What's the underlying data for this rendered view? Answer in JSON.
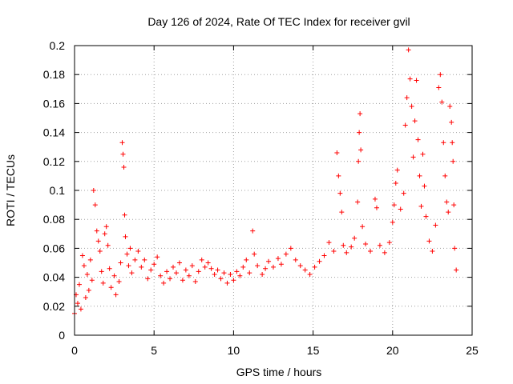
{
  "chart_data": {
    "type": "scatter",
    "title": "Day 126 of 2024, Rate Of TEC Index for receiver gvil",
    "xlabel": "GPS time / hours",
    "ylabel": "ROTI / TECUs",
    "xlim": [
      0,
      25
    ],
    "ylim": [
      0,
      0.2
    ],
    "xticks": [
      0,
      5,
      10,
      15,
      20,
      25
    ],
    "xtick_labels": [
      "0",
      "5",
      "10",
      "15",
      "20",
      "25"
    ],
    "yticks": [
      0,
      0.02,
      0.04,
      0.06,
      0.08,
      0.1,
      0.12,
      0.14,
      0.16,
      0.18,
      0.2
    ],
    "ytick_labels": [
      "0",
      "0.02",
      "0.04",
      "0.06",
      "0.08",
      "0.1",
      "0.12",
      "0.14",
      "0.16",
      "0.18",
      "0.2"
    ],
    "grid": true,
    "marker": "+",
    "color": "#ff0000",
    "series": [
      {
        "name": "ROTI",
        "points": [
          [
            0.0,
            0.015
          ],
          [
            0.1,
            0.028
          ],
          [
            0.2,
            0.022
          ],
          [
            0.3,
            0.035
          ],
          [
            0.4,
            0.018
          ],
          [
            0.5,
            0.055
          ],
          [
            0.6,
            0.048
          ],
          [
            0.7,
            0.026
          ],
          [
            0.8,
            0.042
          ],
          [
            0.9,
            0.031
          ],
          [
            1.0,
            0.052
          ],
          [
            1.1,
            0.038
          ],
          [
            1.2,
            0.1
          ],
          [
            1.3,
            0.09
          ],
          [
            1.4,
            0.072
          ],
          [
            1.5,
            0.065
          ],
          [
            1.6,
            0.058
          ],
          [
            1.7,
            0.044
          ],
          [
            1.8,
            0.036
          ],
          [
            1.9,
            0.07
          ],
          [
            2.0,
            0.075
          ],
          [
            2.1,
            0.062
          ],
          [
            2.2,
            0.046
          ],
          [
            2.3,
            0.033
          ],
          [
            2.5,
            0.041
          ],
          [
            2.6,
            0.028
          ],
          [
            2.8,
            0.037
          ],
          [
            2.9,
            0.05
          ],
          [
            3.0,
            0.133
          ],
          [
            3.05,
            0.125
          ],
          [
            3.1,
            0.116
          ],
          [
            3.15,
            0.083
          ],
          [
            3.2,
            0.068
          ],
          [
            3.3,
            0.056
          ],
          [
            3.4,
            0.048
          ],
          [
            3.5,
            0.06
          ],
          [
            3.6,
            0.043
          ],
          [
            3.8,
            0.052
          ],
          [
            4.0,
            0.058
          ],
          [
            4.2,
            0.047
          ],
          [
            4.4,
            0.052
          ],
          [
            4.6,
            0.039
          ],
          [
            4.8,
            0.045
          ],
          [
            5.0,
            0.049
          ],
          [
            5.2,
            0.054
          ],
          [
            5.4,
            0.041
          ],
          [
            5.6,
            0.036
          ],
          [
            5.8,
            0.044
          ],
          [
            6.0,
            0.039
          ],
          [
            6.2,
            0.047
          ],
          [
            6.4,
            0.043
          ],
          [
            6.6,
            0.05
          ],
          [
            6.8,
            0.038
          ],
          [
            7.0,
            0.045
          ],
          [
            7.2,
            0.041
          ],
          [
            7.4,
            0.048
          ],
          [
            7.6,
            0.037
          ],
          [
            7.8,
            0.044
          ],
          [
            8.0,
            0.052
          ],
          [
            8.2,
            0.047
          ],
          [
            8.4,
            0.05
          ],
          [
            8.6,
            0.046
          ],
          [
            8.8,
            0.042
          ],
          [
            9.0,
            0.045
          ],
          [
            9.2,
            0.039
          ],
          [
            9.4,
            0.043
          ],
          [
            9.6,
            0.036
          ],
          [
            9.8,
            0.042
          ],
          [
            10.0,
            0.038
          ],
          [
            10.2,
            0.044
          ],
          [
            10.4,
            0.041
          ],
          [
            10.6,
            0.047
          ],
          [
            10.8,
            0.052
          ],
          [
            11.0,
            0.043
          ],
          [
            11.2,
            0.072
          ],
          [
            11.3,
            0.056
          ],
          [
            11.5,
            0.048
          ],
          [
            11.8,
            0.042
          ],
          [
            12.0,
            0.046
          ],
          [
            12.2,
            0.051
          ],
          [
            12.5,
            0.047
          ],
          [
            12.8,
            0.053
          ],
          [
            13.0,
            0.049
          ],
          [
            13.3,
            0.056
          ],
          [
            13.6,
            0.06
          ],
          [
            13.9,
            0.052
          ],
          [
            14.2,
            0.048
          ],
          [
            14.5,
            0.045
          ],
          [
            14.8,
            0.042
          ],
          [
            15.1,
            0.047
          ],
          [
            15.4,
            0.051
          ],
          [
            15.7,
            0.055
          ],
          [
            16.0,
            0.064
          ],
          [
            16.3,
            0.058
          ],
          [
            16.5,
            0.126
          ],
          [
            16.6,
            0.11
          ],
          [
            16.7,
            0.098
          ],
          [
            16.8,
            0.085
          ],
          [
            16.9,
            0.062
          ],
          [
            17.1,
            0.057
          ],
          [
            17.4,
            0.061
          ],
          [
            17.6,
            0.067
          ],
          [
            17.8,
            0.092
          ],
          [
            17.85,
            0.12
          ],
          [
            17.9,
            0.14
          ],
          [
            17.95,
            0.153
          ],
          [
            18.0,
            0.128
          ],
          [
            18.1,
            0.075
          ],
          [
            18.3,
            0.063
          ],
          [
            18.6,
            0.058
          ],
          [
            18.9,
            0.094
          ],
          [
            19.0,
            0.088
          ],
          [
            19.2,
            0.062
          ],
          [
            19.5,
            0.057
          ],
          [
            19.8,
            0.064
          ],
          [
            20.0,
            0.078
          ],
          [
            20.1,
            0.09
          ],
          [
            20.2,
            0.105
          ],
          [
            20.3,
            0.114
          ],
          [
            20.5,
            0.087
          ],
          [
            20.7,
            0.098
          ],
          [
            20.8,
            0.145
          ],
          [
            20.9,
            0.164
          ],
          [
            21.0,
            0.197
          ],
          [
            21.1,
            0.177
          ],
          [
            21.2,
            0.158
          ],
          [
            21.3,
            0.123
          ],
          [
            21.4,
            0.148
          ],
          [
            21.5,
            0.176
          ],
          [
            21.6,
            0.135
          ],
          [
            21.7,
            0.11
          ],
          [
            21.8,
            0.089
          ],
          [
            21.9,
            0.125
          ],
          [
            22.0,
            0.103
          ],
          [
            22.1,
            0.082
          ],
          [
            22.3,
            0.065
          ],
          [
            22.5,
            0.058
          ],
          [
            22.7,
            0.076
          ],
          [
            22.9,
            0.171
          ],
          [
            23.0,
            0.18
          ],
          [
            23.1,
            0.161
          ],
          [
            23.2,
            0.133
          ],
          [
            23.3,
            0.11
          ],
          [
            23.4,
            0.092
          ],
          [
            23.5,
            0.085
          ],
          [
            23.6,
            0.158
          ],
          [
            23.7,
            0.147
          ],
          [
            23.75,
            0.133
          ],
          [
            23.8,
            0.12
          ],
          [
            23.85,
            0.09
          ],
          [
            23.9,
            0.06
          ],
          [
            24.0,
            0.045
          ]
        ]
      }
    ]
  }
}
